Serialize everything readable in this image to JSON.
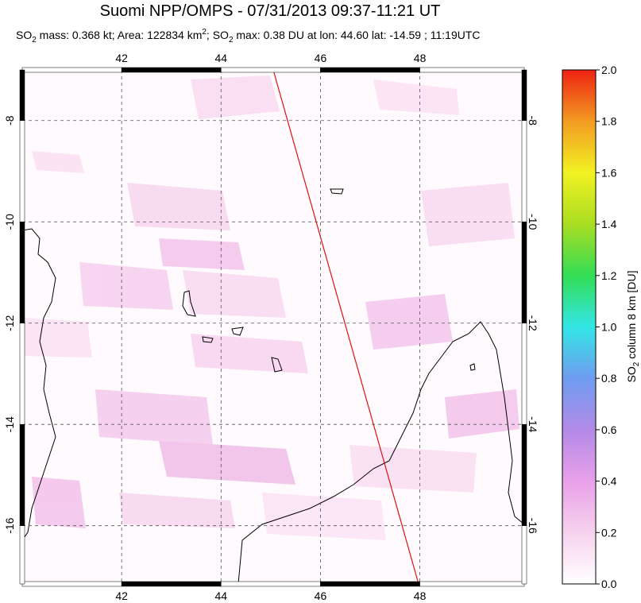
{
  "title": "Suomi NPP/OMPS - 07/31/2013 09:37-11:21 UT",
  "subtitle": [
    "SO",
    "2",
    " mass: 0.368 kt; Area: 122834 km",
    "2",
    "; SO",
    "2",
    " max: 0.38 DU at lon: 44.60 lat: -14.59 ; 11:19UTC"
  ],
  "map": {
    "xlim": [
      40,
      50.1
    ],
    "ylim": [
      -17.15,
      -7
    ],
    "xticks": [
      42,
      44,
      46,
      48
    ],
    "yticks": [
      -8,
      -10,
      -12,
      -14,
      -16
    ]
  },
  "colorbar": {
    "label": [
      "SO",
      "2",
      " column 8 km [DU]"
    ],
    "lim": [
      0,
      2
    ],
    "colors": [
      "#ffffff",
      "#f6d2ee",
      "#e9a0e8",
      "#b38ae8",
      "#6f9cf0",
      "#33e6e6",
      "#33dd55",
      "#aadd22",
      "#f2f222",
      "#f29b22",
      "#ee2211"
    ],
    "ticks": [
      {
        "value": 0,
        "label": "0.0"
      },
      {
        "value": 0.2,
        "label": "0.2"
      },
      {
        "value": 0.4,
        "label": "0.4"
      },
      {
        "value": 0.6,
        "label": "0.6"
      },
      {
        "value": 0.8,
        "label": "0.8"
      },
      {
        "value": 1,
        "label": "1.0"
      },
      {
        "value": 1.2,
        "label": "1.2"
      },
      {
        "value": 1.4,
        "label": "1.4"
      },
      {
        "value": 1.6,
        "label": "1.6"
      },
      {
        "value": 1.8,
        "label": "1.8"
      },
      {
        "value": 2,
        "label": "2.0"
      }
    ]
  }
}
